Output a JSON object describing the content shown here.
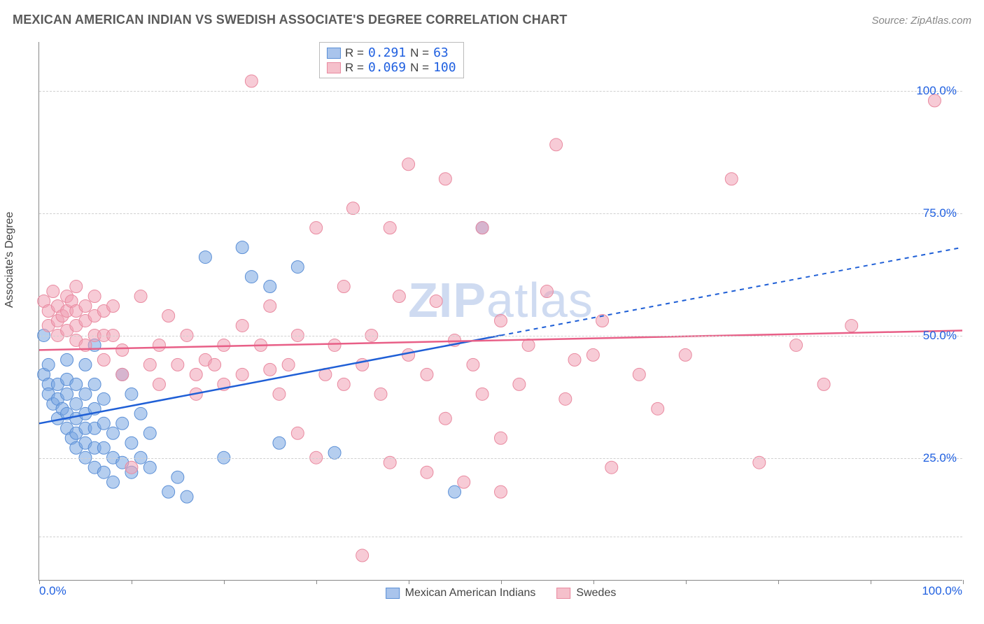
{
  "header": {
    "title": "MEXICAN AMERICAN INDIAN VS SWEDISH ASSOCIATE'S DEGREE CORRELATION CHART",
    "source": "Source: ZipAtlas.com"
  },
  "chart": {
    "type": "scatter",
    "ylabel": "Associate's Degree",
    "background_color": "#ffffff",
    "grid_color": "#d0d0d0",
    "axis_color": "#888888",
    "label_fontsize": 16,
    "tick_color": "#2060e0",
    "tick_fontsize": 17,
    "xlim": [
      0,
      100
    ],
    "ylim": [
      0,
      110
    ],
    "x_ticks": [
      0,
      10,
      20,
      30,
      40,
      50,
      60,
      70,
      80,
      90,
      100
    ],
    "x_tick_labels_shown": {
      "min": "0.0%",
      "max": "100.0%"
    },
    "y_gridlines": [
      9,
      25,
      50,
      75,
      100
    ],
    "y_tick_labels": {
      "25": "25.0%",
      "50": "50.0%",
      "75": "75.0%",
      "100": "100.0%"
    },
    "watermark": "ZIPatlas",
    "watermark_color": "#b0c4e8",
    "legend_top": {
      "border_color": "#bbbbbb",
      "rows": [
        {
          "swatch_fill": "#a9c4ec",
          "swatch_border": "#5b8fd6",
          "r_label": "R =",
          "r_value": "0.291",
          "n_label": "N =",
          "n_value": "63"
        },
        {
          "swatch_fill": "#f5c0cb",
          "swatch_border": "#e98aa0",
          "r_label": "R =",
          "r_value": "0.069",
          "n_label": "N =",
          "n_value": "100"
        }
      ]
    },
    "legend_bottom": [
      {
        "swatch_fill": "#a9c4ec",
        "swatch_border": "#5b8fd6",
        "label": "Mexican American Indians"
      },
      {
        "swatch_fill": "#f5c0cb",
        "swatch_border": "#e98aa0",
        "label": "Swedes"
      }
    ],
    "series": [
      {
        "name": "mexican_american_indians",
        "marker_fill": "rgba(120,165,225,0.55)",
        "marker_stroke": "#5b8fd6",
        "marker_radius": 9,
        "trend_color": "#1f5fd6",
        "trend_width": 2.5,
        "trend": {
          "x1": 0,
          "y1": 32,
          "x2": 50,
          "y2": 50,
          "x2_dash": 100,
          "y2_dash": 68
        },
        "points": [
          [
            0.5,
            50
          ],
          [
            0.5,
            42
          ],
          [
            1,
            44
          ],
          [
            1,
            40
          ],
          [
            1,
            38
          ],
          [
            1.5,
            36
          ],
          [
            2,
            40
          ],
          [
            2,
            37
          ],
          [
            2,
            33
          ],
          [
            2.5,
            35
          ],
          [
            3,
            45
          ],
          [
            3,
            41
          ],
          [
            3,
            38
          ],
          [
            3,
            34
          ],
          [
            3,
            31
          ],
          [
            3.5,
            29
          ],
          [
            4,
            40
          ],
          [
            4,
            36
          ],
          [
            4,
            33
          ],
          [
            4,
            30
          ],
          [
            4,
            27
          ],
          [
            5,
            44
          ],
          [
            5,
            38
          ],
          [
            5,
            34
          ],
          [
            5,
            31
          ],
          [
            5,
            28
          ],
          [
            5,
            25
          ],
          [
            6,
            48
          ],
          [
            6,
            40
          ],
          [
            6,
            35
          ],
          [
            6,
            31
          ],
          [
            6,
            27
          ],
          [
            6,
            23
          ],
          [
            7,
            37
          ],
          [
            7,
            32
          ],
          [
            7,
            27
          ],
          [
            7,
            22
          ],
          [
            8,
            30
          ],
          [
            8,
            25
          ],
          [
            8,
            20
          ],
          [
            9,
            42
          ],
          [
            9,
            32
          ],
          [
            9,
            24
          ],
          [
            10,
            38
          ],
          [
            10,
            28
          ],
          [
            10,
            22
          ],
          [
            11,
            34
          ],
          [
            11,
            25
          ],
          [
            12,
            30
          ],
          [
            12,
            23
          ],
          [
            14,
            18
          ],
          [
            15,
            21
          ],
          [
            16,
            17
          ],
          [
            18,
            66
          ],
          [
            20,
            25
          ],
          [
            22,
            68
          ],
          [
            23,
            62
          ],
          [
            25,
            60
          ],
          [
            26,
            28
          ],
          [
            28,
            64
          ],
          [
            32,
            26
          ],
          [
            45,
            18
          ],
          [
            48,
            72
          ]
        ]
      },
      {
        "name": "swedes",
        "marker_fill": "rgba(240,160,180,0.55)",
        "marker_stroke": "#e98aa0",
        "marker_radius": 9,
        "trend_color": "#e85f87",
        "trend_width": 2.5,
        "trend": {
          "x1": 0,
          "y1": 47,
          "x2": 100,
          "y2": 51
        },
        "points": [
          [
            0.5,
            57
          ],
          [
            1,
            55
          ],
          [
            1,
            52
          ],
          [
            1.5,
            59
          ],
          [
            2,
            56
          ],
          [
            2,
            53
          ],
          [
            2,
            50
          ],
          [
            2.5,
            54
          ],
          [
            3,
            58
          ],
          [
            3,
            55
          ],
          [
            3,
            51
          ],
          [
            3.5,
            57
          ],
          [
            4,
            60
          ],
          [
            4,
            55
          ],
          [
            4,
            52
          ],
          [
            4,
            49
          ],
          [
            5,
            56
          ],
          [
            5,
            53
          ],
          [
            5,
            48
          ],
          [
            6,
            58
          ],
          [
            6,
            54
          ],
          [
            6,
            50
          ],
          [
            7,
            55
          ],
          [
            7,
            50
          ],
          [
            7,
            45
          ],
          [
            8,
            56
          ],
          [
            8,
            50
          ],
          [
            9,
            47
          ],
          [
            9,
            42
          ],
          [
            10,
            23
          ],
          [
            11,
            58
          ],
          [
            12,
            44
          ],
          [
            13,
            48
          ],
          [
            13,
            40
          ],
          [
            14,
            54
          ],
          [
            15,
            44
          ],
          [
            16,
            50
          ],
          [
            17,
            38
          ],
          [
            17,
            42
          ],
          [
            18,
            45
          ],
          [
            19,
            44
          ],
          [
            20,
            40
          ],
          [
            20,
            48
          ],
          [
            22,
            52
          ],
          [
            22,
            42
          ],
          [
            23,
            102
          ],
          [
            24,
            48
          ],
          [
            25,
            56
          ],
          [
            25,
            43
          ],
          [
            26,
            38
          ],
          [
            27,
            44
          ],
          [
            28,
            30
          ],
          [
            28,
            50
          ],
          [
            30,
            25
          ],
          [
            30,
            72
          ],
          [
            31,
            42
          ],
          [
            32,
            48
          ],
          [
            33,
            60
          ],
          [
            33,
            40
          ],
          [
            34,
            76
          ],
          [
            35,
            44
          ],
          [
            35,
            5
          ],
          [
            36,
            50
          ],
          [
            37,
            38
          ],
          [
            38,
            72
          ],
          [
            38,
            24
          ],
          [
            39,
            58
          ],
          [
            40,
            46
          ],
          [
            40,
            85
          ],
          [
            42,
            42
          ],
          [
            42,
            22
          ],
          [
            43,
            57
          ],
          [
            44,
            33
          ],
          [
            44,
            82
          ],
          [
            45,
            49
          ],
          [
            46,
            20
          ],
          [
            47,
            44
          ],
          [
            48,
            38
          ],
          [
            48,
            72
          ],
          [
            50,
            53
          ],
          [
            50,
            29
          ],
          [
            50,
            18
          ],
          [
            52,
            40
          ],
          [
            53,
            48
          ],
          [
            55,
            59
          ],
          [
            56,
            89
          ],
          [
            57,
            37
          ],
          [
            58,
            45
          ],
          [
            60,
            46
          ],
          [
            61,
            53
          ],
          [
            62,
            23
          ],
          [
            65,
            42
          ],
          [
            67,
            35
          ],
          [
            70,
            46
          ],
          [
            75,
            82
          ],
          [
            78,
            24
          ],
          [
            82,
            48
          ],
          [
            85,
            40
          ],
          [
            88,
            52
          ],
          [
            97,
            98
          ]
        ]
      }
    ]
  }
}
